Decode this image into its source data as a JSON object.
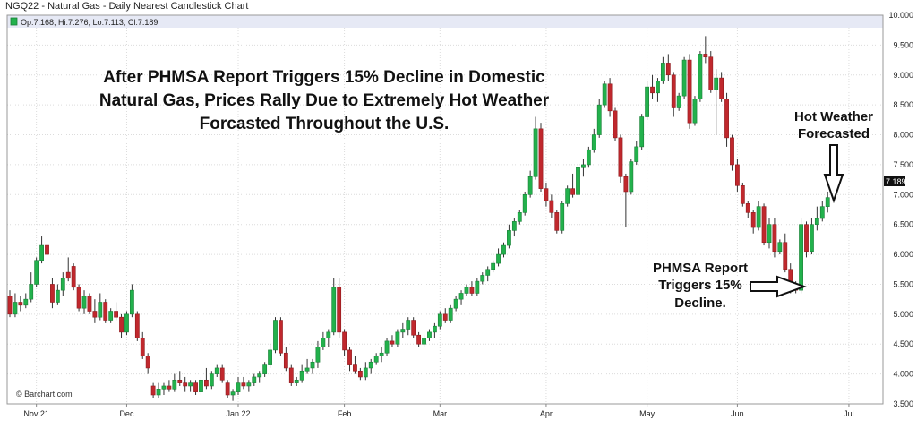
{
  "header": {
    "title": "NGQ22 - Natural Gas - Daily Nearest Candlestick Chart",
    "ohlc": "Op:7.168, Hi:7.276, Lo:7.113, Cl:7.189"
  },
  "watermark": "© Barchart.com",
  "colors": {
    "up": "#22b14c",
    "down": "#c0282d",
    "legend_bg": "#e6e9f5",
    "last_tag_bg": "#111111"
  },
  "annotations": {
    "headline": [
      "After PHMSA Report Triggers 15% Decline in Domestic",
      "Natural Gas, Prices Rally Due to Extremely Hot Weather",
      "Forcasted Throughout the U.S."
    ],
    "weather": [
      "Hot Weather",
      "Forecasted"
    ],
    "phmsa": [
      "PHMSA Report",
      "Triggers 15%",
      "Decline."
    ]
  },
  "chart_data": {
    "type": "candlestick",
    "title": "NGQ22 - Natural Gas - Daily Nearest Candlestick Chart",
    "ylim": [
      3.5,
      10.0
    ],
    "y_ticks": [
      "3.500",
      "4.000",
      "4.500",
      "5.000",
      "5.500",
      "6.000",
      "6.500",
      "7.000",
      "7.500",
      "8.000",
      "8.500",
      "9.000",
      "9.500",
      "10.000"
    ],
    "x_ticks": [
      {
        "label": "Nov 21",
        "index": 5
      },
      {
        "label": "Dec",
        "index": 22
      },
      {
        "label": "Jan 22",
        "index": 43
      },
      {
        "label": "Feb",
        "index": 63
      },
      {
        "label": "Mar",
        "index": 81
      },
      {
        "label": "Apr",
        "index": 101
      },
      {
        "label": "May",
        "index": 120
      },
      {
        "label": "Jun",
        "index": 137
      },
      {
        "label": "Jul",
        "index": 158
      }
    ],
    "last_value": "7.189",
    "candles": [
      [
        5.3,
        5.4,
        4.95,
        5.0
      ],
      [
        5.0,
        5.35,
        4.95,
        5.2
      ],
      [
        5.2,
        5.3,
        5.05,
        5.15
      ],
      [
        5.15,
        5.35,
        5.1,
        5.25
      ],
      [
        5.25,
        5.7,
        5.2,
        5.5
      ],
      [
        5.5,
        5.95,
        5.45,
        5.9
      ],
      [
        5.9,
        6.3,
        5.85,
        6.15
      ],
      [
        6.15,
        6.3,
        5.95,
        6.0
      ],
      [
        5.5,
        5.6,
        5.1,
        5.2
      ],
      [
        5.2,
        5.5,
        5.15,
        5.4
      ],
      [
        5.4,
        5.7,
        5.3,
        5.6
      ],
      [
        5.7,
        5.95,
        5.55,
        5.6
      ],
      [
        5.8,
        5.85,
        5.4,
        5.45
      ],
      [
        5.45,
        5.5,
        5.05,
        5.1
      ],
      [
        5.1,
        5.4,
        5.0,
        5.3
      ],
      [
        5.3,
        5.35,
        5.0,
        5.05
      ],
      [
        5.05,
        5.25,
        4.85,
        4.95
      ],
      [
        4.95,
        5.35,
        4.9,
        5.2
      ],
      [
        5.2,
        5.25,
        4.85,
        4.9
      ],
      [
        4.9,
        5.1,
        4.85,
        5.05
      ],
      [
        5.05,
        5.2,
        4.9,
        4.95
      ],
      [
        4.95,
        5.0,
        4.6,
        4.7
      ],
      [
        4.7,
        5.05,
        4.65,
        5.0
      ],
      [
        5.0,
        5.5,
        4.95,
        5.4
      ],
      [
        5.0,
        5.05,
        4.55,
        4.6
      ],
      [
        4.6,
        4.7,
        4.25,
        4.3
      ],
      [
        4.3,
        4.35,
        4.0,
        4.1
      ],
      [
        3.8,
        3.85,
        3.6,
        3.65
      ],
      [
        3.65,
        3.85,
        3.6,
        3.75
      ],
      [
        3.75,
        3.85,
        3.65,
        3.8
      ],
      [
        3.8,
        3.9,
        3.7,
        3.75
      ],
      [
        3.75,
        4.0,
        3.7,
        3.9
      ],
      [
        3.9,
        4.05,
        3.8,
        3.85
      ],
      [
        3.85,
        3.95,
        3.7,
        3.8
      ],
      [
        3.8,
        3.9,
        3.7,
        3.85
      ],
      [
        3.85,
        3.9,
        3.65,
        3.7
      ],
      [
        3.7,
        3.95,
        3.65,
        3.9
      ],
      [
        3.9,
        4.1,
        3.75,
        3.8
      ],
      [
        3.8,
        4.05,
        3.75,
        4.0
      ],
      [
        4.0,
        4.15,
        3.95,
        4.1
      ],
      [
        4.1,
        4.15,
        3.85,
        3.9
      ],
      [
        3.85,
        3.9,
        3.6,
        3.65
      ],
      [
        3.65,
        3.75,
        3.55,
        3.7
      ],
      [
        3.7,
        3.95,
        3.65,
        3.85
      ],
      [
        3.85,
        3.95,
        3.75,
        3.8
      ],
      [
        3.8,
        3.9,
        3.7,
        3.85
      ],
      [
        3.85,
        4.0,
        3.8,
        3.95
      ],
      [
        3.95,
        4.05,
        3.85,
        4.0
      ],
      [
        4.0,
        4.2,
        3.95,
        4.15
      ],
      [
        4.15,
        4.5,
        4.1,
        4.4
      ],
      [
        4.4,
        4.95,
        4.35,
        4.9
      ],
      [
        4.9,
        4.95,
        4.3,
        4.35
      ],
      [
        4.35,
        4.45,
        4.05,
        4.1
      ],
      [
        4.1,
        4.15,
        3.8,
        3.85
      ],
      [
        3.85,
        3.95,
        3.8,
        3.9
      ],
      [
        3.9,
        4.15,
        3.85,
        4.05
      ],
      [
        4.05,
        4.25,
        4.0,
        4.1
      ],
      [
        4.1,
        4.25,
        4.0,
        4.2
      ],
      [
        4.2,
        4.55,
        4.1,
        4.45
      ],
      [
        4.45,
        4.7,
        4.4,
        4.6
      ],
      [
        4.6,
        4.75,
        4.45,
        4.7
      ],
      [
        4.7,
        5.6,
        4.65,
        5.45
      ],
      [
        5.45,
        5.6,
        4.6,
        4.7
      ],
      [
        4.7,
        4.75,
        4.3,
        4.4
      ],
      [
        4.4,
        4.45,
        4.05,
        4.15
      ],
      [
        4.15,
        4.3,
        4.0,
        4.05
      ],
      [
        4.05,
        4.1,
        3.9,
        3.95
      ],
      [
        3.95,
        4.2,
        3.9,
        4.1
      ],
      [
        4.1,
        4.25,
        4.0,
        4.2
      ],
      [
        4.2,
        4.35,
        4.15,
        4.3
      ],
      [
        4.3,
        4.45,
        4.2,
        4.35
      ],
      [
        4.35,
        4.6,
        4.3,
        4.55
      ],
      [
        4.55,
        4.65,
        4.45,
        4.5
      ],
      [
        4.5,
        4.75,
        4.45,
        4.7
      ],
      [
        4.7,
        4.85,
        4.6,
        4.75
      ],
      [
        4.75,
        4.95,
        4.65,
        4.9
      ],
      [
        4.9,
        4.95,
        4.6,
        4.65
      ],
      [
        4.65,
        4.7,
        4.45,
        4.5
      ],
      [
        4.5,
        4.65,
        4.45,
        4.6
      ],
      [
        4.6,
        4.75,
        4.55,
        4.7
      ],
      [
        4.7,
        4.85,
        4.6,
        4.8
      ],
      [
        4.8,
        5.05,
        4.75,
        5.0
      ],
      [
        5.0,
        5.1,
        4.85,
        4.9
      ],
      [
        4.9,
        5.15,
        4.85,
        5.1
      ],
      [
        5.1,
        5.3,
        5.05,
        5.25
      ],
      [
        5.25,
        5.4,
        5.15,
        5.35
      ],
      [
        5.35,
        5.5,
        5.3,
        5.45
      ],
      [
        5.45,
        5.55,
        5.3,
        5.35
      ],
      [
        5.35,
        5.6,
        5.3,
        5.55
      ],
      [
        5.55,
        5.7,
        5.5,
        5.65
      ],
      [
        5.65,
        5.8,
        5.55,
        5.75
      ],
      [
        5.75,
        5.9,
        5.7,
        5.85
      ],
      [
        5.85,
        6.1,
        5.8,
        6.0
      ],
      [
        6.0,
        6.2,
        5.95,
        6.15
      ],
      [
        6.15,
        6.5,
        6.1,
        6.4
      ],
      [
        6.4,
        6.6,
        6.3,
        6.55
      ],
      [
        6.55,
        6.75,
        6.5,
        6.7
      ],
      [
        6.7,
        7.05,
        6.65,
        7.0
      ],
      [
        7.0,
        7.4,
        6.95,
        7.3
      ],
      [
        7.3,
        8.3,
        7.25,
        8.1
      ],
      [
        8.1,
        8.2,
        7.05,
        7.1
      ],
      [
        7.1,
        7.2,
        6.8,
        6.9
      ],
      [
        6.9,
        7.0,
        6.6,
        6.7
      ],
      [
        6.7,
        6.75,
        6.35,
        6.4
      ],
      [
        6.4,
        6.9,
        6.35,
        6.85
      ],
      [
        6.85,
        7.15,
        6.8,
        7.1
      ],
      [
        7.1,
        7.35,
        6.95,
        7.0
      ],
      [
        7.0,
        7.5,
        6.95,
        7.45
      ],
      [
        7.45,
        7.6,
        7.3,
        7.5
      ],
      [
        7.5,
        7.8,
        7.45,
        7.75
      ],
      [
        7.75,
        8.1,
        7.7,
        8.0
      ],
      [
        8.0,
        8.6,
        7.95,
        8.5
      ],
      [
        8.5,
        8.9,
        8.45,
        8.85
      ],
      [
        8.85,
        8.95,
        8.3,
        8.4
      ],
      [
        8.4,
        8.45,
        7.9,
        7.95
      ],
      [
        7.95,
        8.0,
        7.2,
        7.3
      ],
      [
        7.3,
        7.35,
        6.45,
        7.05
      ],
      [
        7.05,
        7.6,
        7.0,
        7.55
      ],
      [
        7.55,
        7.9,
        7.5,
        7.8
      ],
      [
        7.8,
        8.35,
        7.75,
        8.3
      ],
      [
        8.3,
        8.9,
        8.25,
        8.8
      ],
      [
        8.8,
        9.0,
        8.6,
        8.7
      ],
      [
        8.7,
        8.95,
        8.55,
        8.9
      ],
      [
        8.9,
        9.3,
        8.85,
        9.2
      ],
      [
        9.2,
        9.35,
        8.9,
        9.0
      ],
      [
        9.0,
        9.05,
        8.3,
        8.45
      ],
      [
        8.45,
        8.7,
        8.4,
        8.65
      ],
      [
        8.65,
        9.3,
        8.6,
        9.25
      ],
      [
        9.25,
        9.35,
        8.1,
        8.2
      ],
      [
        8.2,
        8.65,
        8.15,
        8.6
      ],
      [
        8.6,
        9.4,
        8.55,
        9.35
      ],
      [
        9.35,
        9.65,
        9.2,
        9.3
      ],
      [
        9.3,
        9.4,
        8.7,
        8.75
      ],
      [
        8.75,
        9.1,
        8.0,
        8.95
      ],
      [
        8.95,
        9.05,
        8.55,
        8.6
      ],
      [
        8.6,
        8.7,
        7.8,
        7.95
      ],
      [
        7.95,
        8.0,
        7.4,
        7.5
      ],
      [
        7.5,
        7.6,
        7.05,
        7.15
      ],
      [
        7.15,
        7.2,
        6.8,
        6.85
      ],
      [
        6.85,
        6.9,
        6.6,
        6.7
      ],
      [
        6.7,
        6.75,
        6.35,
        6.45
      ],
      [
        6.45,
        6.9,
        6.4,
        6.8
      ],
      [
        6.8,
        6.85,
        6.15,
        6.2
      ],
      [
        6.2,
        6.6,
        6.1,
        6.5
      ],
      [
        6.5,
        6.6,
        5.95,
        6.05
      ],
      [
        6.05,
        6.25,
        6.0,
        6.2
      ],
      [
        6.2,
        6.35,
        5.7,
        5.75
      ],
      [
        5.75,
        5.85,
        5.35,
        5.45
      ],
      [
        5.45,
        5.55,
        5.35,
        5.4
      ],
      [
        5.4,
        6.6,
        5.35,
        6.5
      ],
      [
        6.5,
        6.55,
        5.95,
        6.05
      ],
      [
        6.05,
        6.6,
        6.0,
        6.5
      ],
      [
        6.5,
        6.8,
        6.4,
        6.6
      ],
      [
        6.6,
        6.9,
        6.55,
        6.8
      ],
      [
        6.8,
        7.05,
        6.7,
        6.95
      ],
      [
        7.168,
        7.276,
        7.113,
        7.189
      ]
    ]
  }
}
